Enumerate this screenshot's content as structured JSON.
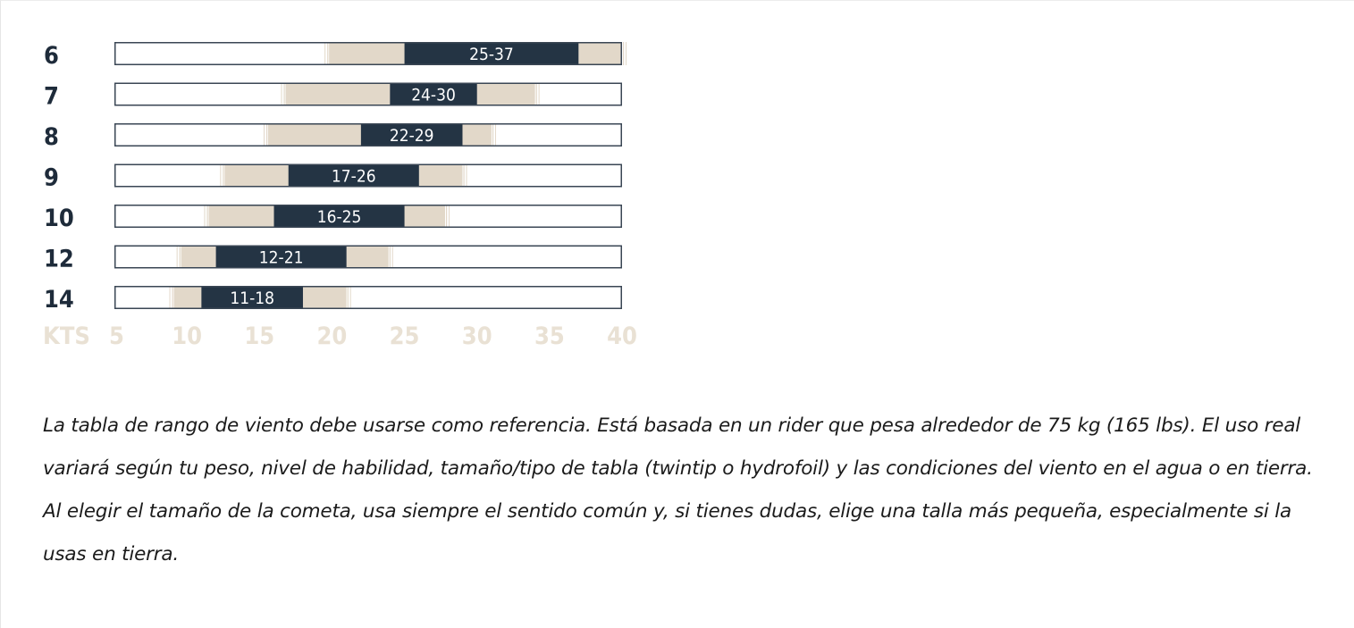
{
  "chart_data": {
    "type": "bar",
    "subtype": "floating-range",
    "x_unit_label": "KTS",
    "xlim": [
      5,
      40
    ],
    "xticks": [
      "5",
      "10",
      "15",
      "20",
      "25",
      "30",
      "35",
      "40"
    ],
    "grid": false,
    "legend": "none",
    "colors": {
      "ideal": "#243444",
      "usable": "#e2d8c9",
      "frame": "#3a4654",
      "row_label": "#1e2b3a",
      "axis_label": "#e9e1d4"
    },
    "rows": [
      {
        "size": "6",
        "usable": [
          19.8,
          40
        ],
        "ideal": [
          25,
          37
        ],
        "label": "25-37"
      },
      {
        "size": "7",
        "usable": [
          16.8,
          34
        ],
        "ideal": [
          24,
          30
        ],
        "label": "24-30"
      },
      {
        "size": "8",
        "usable": [
          15.6,
          31
        ],
        "ideal": [
          22,
          29
        ],
        "label": "22-29"
      },
      {
        "size": "9",
        "usable": [
          12.6,
          29
        ],
        "ideal": [
          17,
          26
        ],
        "label": "17-26"
      },
      {
        "size": "10",
        "usable": [
          11.5,
          27.8
        ],
        "ideal": [
          16,
          25
        ],
        "label": "16-25"
      },
      {
        "size": "12",
        "usable": [
          9.6,
          23.9
        ],
        "ideal": [
          12,
          21
        ],
        "label": "12-21"
      },
      {
        "size": "14",
        "usable": [
          9.1,
          21
        ],
        "ideal": [
          11,
          18
        ],
        "label": "11-18"
      }
    ]
  },
  "note": {
    "text": "La tabla de rango de viento debe usarse como referencia. Está basada en un rider que pesa alrededor de 75 kg (165 lbs). El uso real variará según tu peso, nivel de habilidad, tamaño/tipo de tabla (twintip o hydrofoil) y las condiciones del viento en el agua o en tierra. Al elegir el tamaño de la cometa, usa siempre el sentido común y, si tienes dudas, elige una talla más pequeña, especialmente si la usas en tierra."
  }
}
